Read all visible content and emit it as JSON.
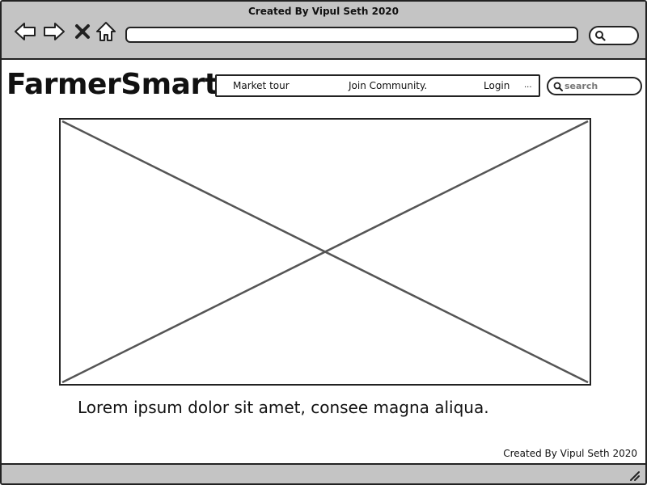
{
  "window": {
    "title": "Created By Vipul Seth 2020"
  },
  "browser": {
    "icons": {
      "back": "back-arrow-icon",
      "forward": "forward-arrow-icon",
      "close": "close-icon",
      "home": "home-icon",
      "search": "search-icon"
    },
    "url_value": ""
  },
  "header": {
    "logo": "FarmerSmart",
    "menu": [
      {
        "label": "Market tour"
      },
      {
        "label": "Join Community."
      },
      {
        "label": "Login"
      },
      {
        "label": "..."
      }
    ],
    "search": {
      "placeholder": "search"
    }
  },
  "main": {
    "image_placeholder": "image-placeholder",
    "text": "Lorem ipsum dolor sit amet, consee magna aliqua."
  },
  "footer": {
    "credit": "Created By Vipul Seth 2020"
  },
  "colors": {
    "chrome": "#c4c4c4",
    "border": "#222222",
    "placeholder_lines": "#555555"
  }
}
